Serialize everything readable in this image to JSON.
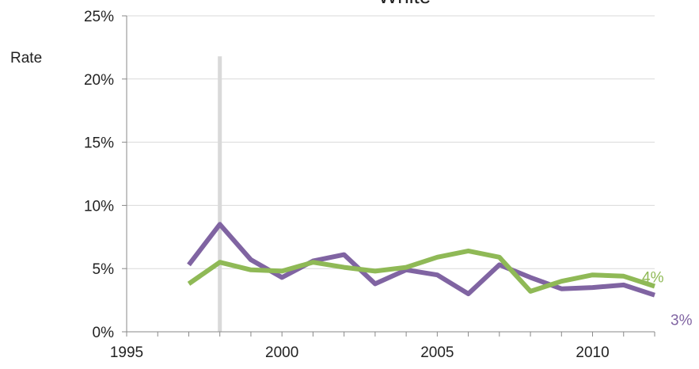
{
  "chart_data": {
    "type": "line",
    "title": "White",
    "ylabel": "Rate",
    "xlabel": "",
    "xlim": [
      1995,
      2012
    ],
    "ylim": [
      0,
      25
    ],
    "x_ticks": [
      1995,
      2000,
      2005,
      2010
    ],
    "y_ticks": [
      0,
      5,
      10,
      15,
      20,
      25
    ],
    "x_tick_labels": [
      "1995",
      "2000",
      "2005",
      "2010"
    ],
    "y_tick_labels": [
      "0%",
      "5%",
      "10%",
      "15%",
      "20%",
      "25%"
    ],
    "grid": "horizontal",
    "reference_line": {
      "x": 1998,
      "y_top": 21.8,
      "color": "#d9d9d9"
    },
    "x": [
      1997,
      1998,
      1999,
      2000,
      2001,
      2002,
      2003,
      2004,
      2005,
      2006,
      2007,
      2008,
      2009,
      2010,
      2011,
      2012
    ],
    "series": [
      {
        "color": "#8064a2",
        "values": [
          5.3,
          8.5,
          5.7,
          4.3,
          5.6,
          6.1,
          3.8,
          4.9,
          4.5,
          3.0,
          5.3,
          4.3,
          3.4,
          3.5,
          3.7,
          2.9
        ],
        "end_label": "3%"
      },
      {
        "color": "#8fb956",
        "values": [
          3.8,
          5.5,
          4.9,
          4.8,
          5.5,
          5.1,
          4.8,
          5.1,
          5.9,
          6.4,
          5.9,
          3.2,
          4.0,
          4.5,
          4.4,
          3.6
        ],
        "end_label": "4%"
      }
    ]
  }
}
